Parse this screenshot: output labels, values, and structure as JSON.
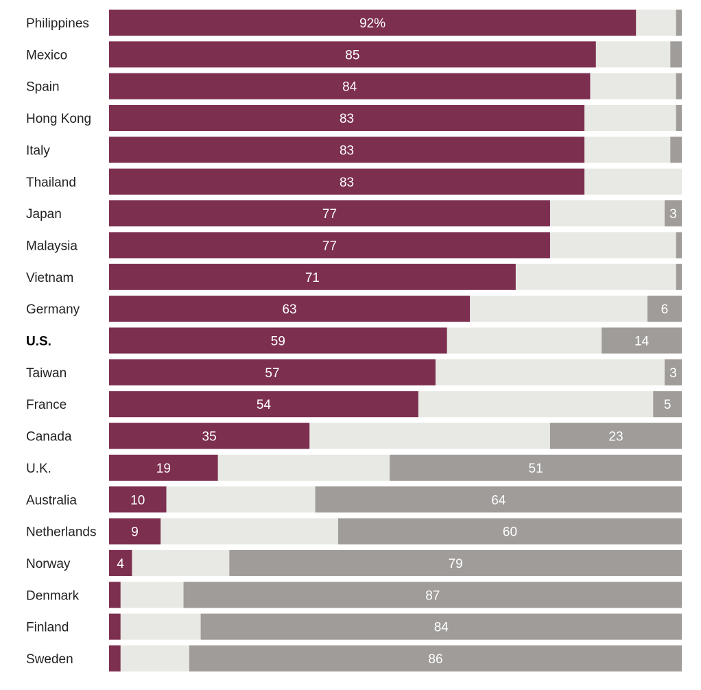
{
  "chart_data": {
    "type": "bar",
    "orientation": "horizontal",
    "stacked": true,
    "colors": {
      "primary": "#7d2f50",
      "middle": "#e8e9e4",
      "right": "#a09c99"
    },
    "xlim": [
      0,
      100
    ],
    "value_suffix_first": "%",
    "categories": [
      "Philippines",
      "Mexico",
      "Spain",
      "Hong Kong",
      "Italy",
      "Thailand",
      "Japan",
      "Malaysia",
      "Vietnam",
      "Germany",
      "U.S.",
      "Taiwan",
      "France",
      "Canada",
      "U.K.",
      "Australia",
      "Netherlands",
      "Norway",
      "Denmark",
      "Finland",
      "Sweden"
    ],
    "bold_categories": [
      "U.S."
    ],
    "series": [
      {
        "name": "primary",
        "values": [
          92,
          85,
          84,
          83,
          83,
          83,
          77,
          77,
          71,
          63,
          59,
          57,
          54,
          35,
          19,
          10,
          9,
          4,
          2,
          2,
          2
        ],
        "labels": [
          "92%",
          "85",
          "84",
          "83",
          "83",
          "83",
          "77",
          "77",
          "71",
          "63",
          "59",
          "57",
          "54",
          "35",
          "19",
          "10",
          "9",
          "4",
          "",
          "",
          ""
        ]
      },
      {
        "name": "right",
        "values": [
          1,
          2,
          1,
          1,
          2,
          0,
          3,
          1,
          1,
          6,
          14,
          3,
          5,
          23,
          51,
          64,
          60,
          79,
          87,
          84,
          86
        ],
        "labels": [
          "",
          "",
          "",
          "",
          "",
          "",
          "3",
          "",
          "",
          "6",
          "14",
          "3",
          "5",
          "23",
          "51",
          "64",
          "60",
          "79",
          "87",
          "84",
          "86"
        ]
      }
    ]
  }
}
